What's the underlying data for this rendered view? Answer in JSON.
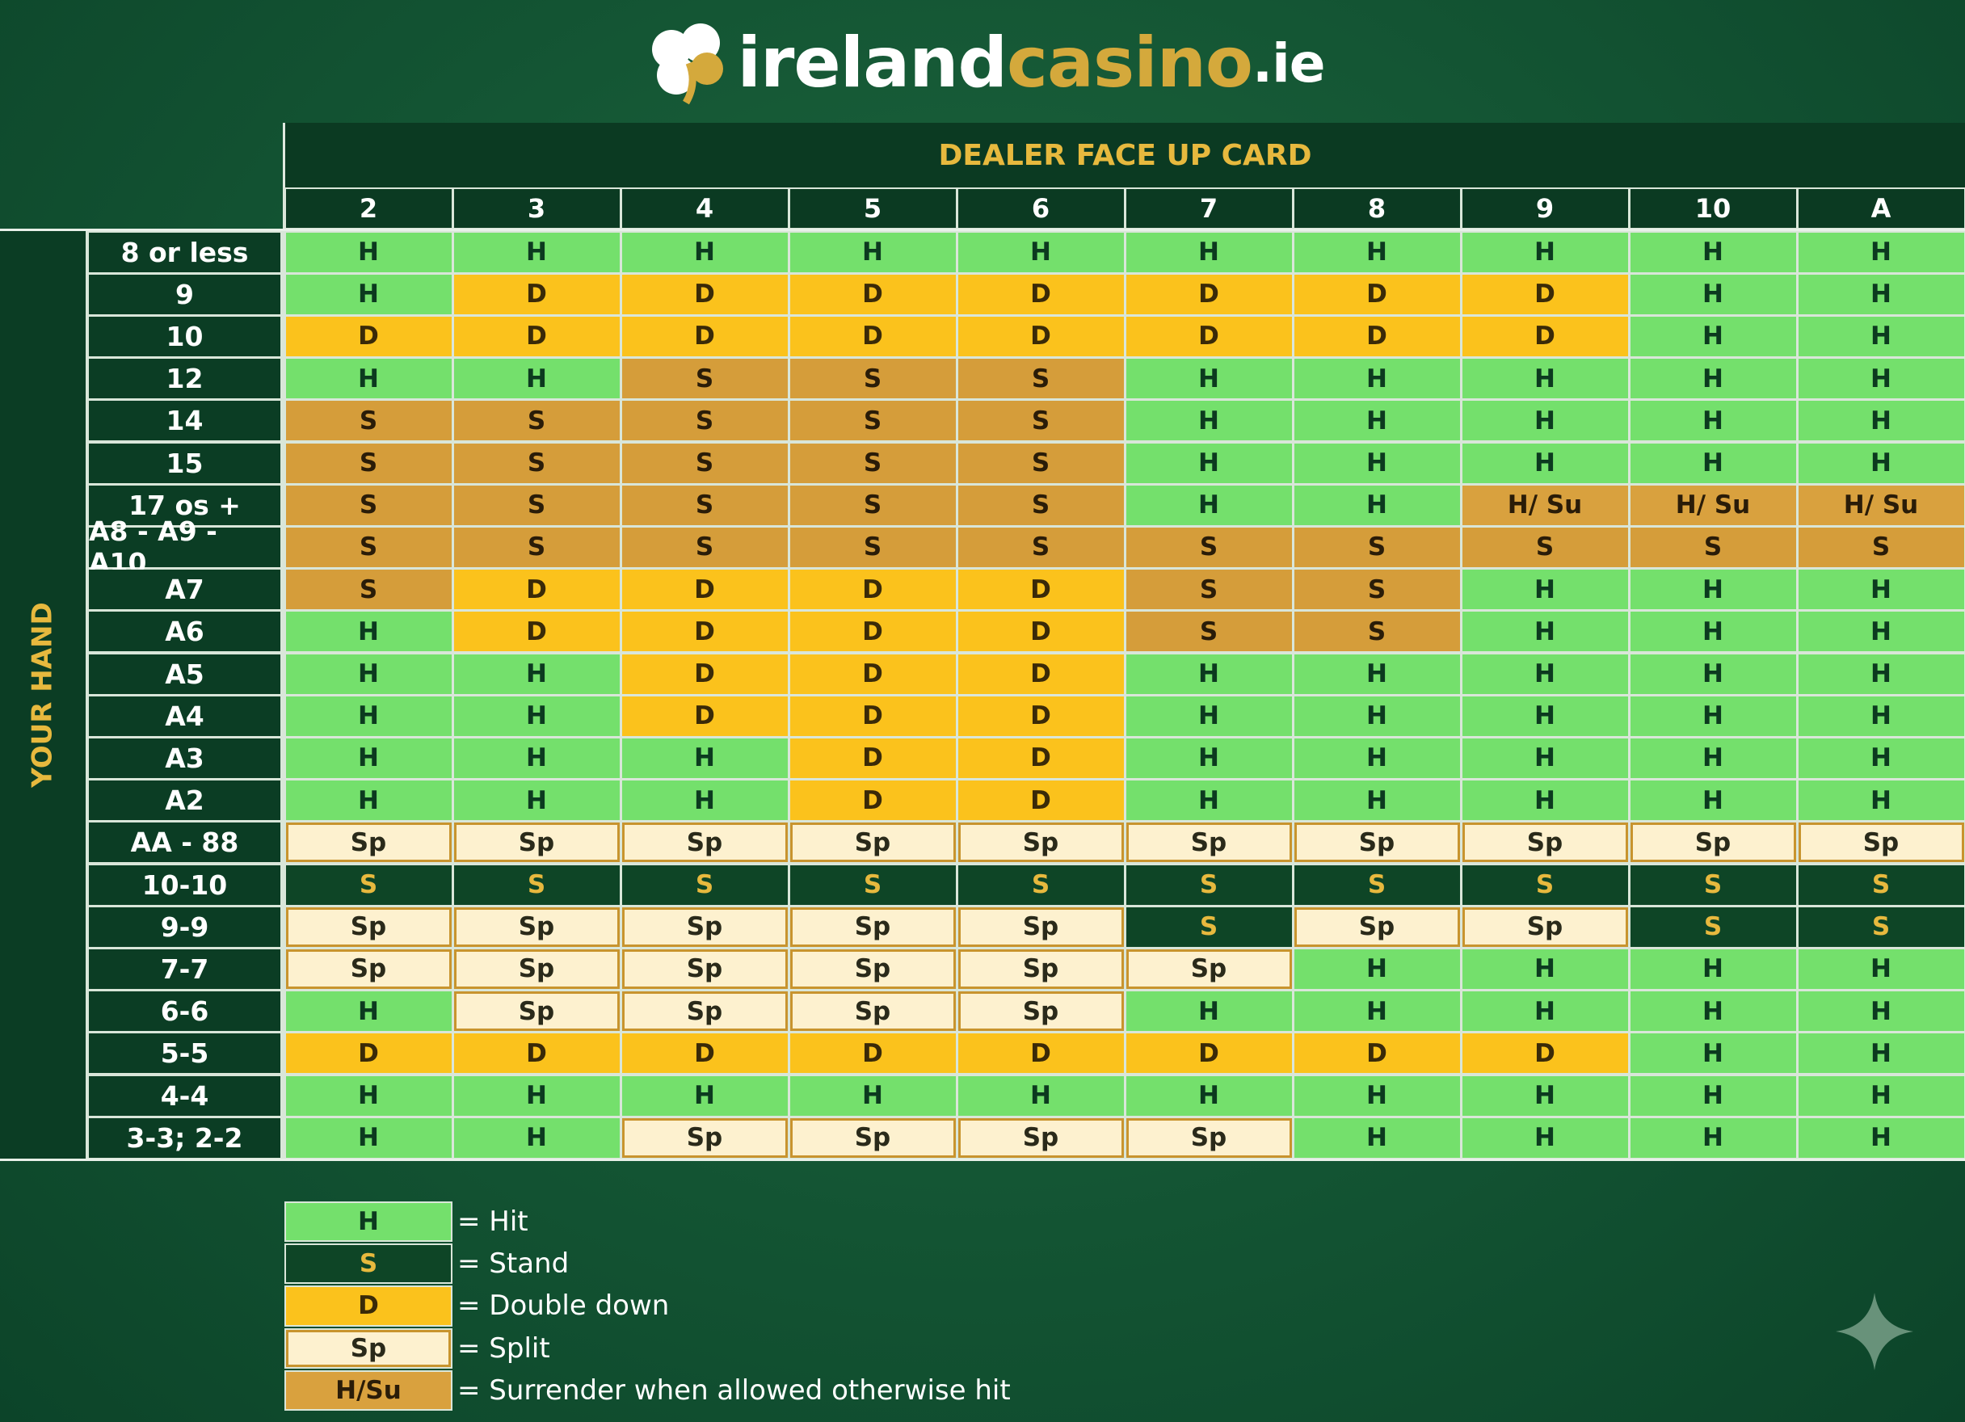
{
  "header": {
    "logo": {
      "part1": "ireland",
      "part2": "casino",
      "part3": ".ie"
    }
  },
  "table": {
    "column_header": "DEALER FACE UP CARD",
    "row_header": "YOUR HAND",
    "columns": [
      "2",
      "3",
      "4",
      "5",
      "6",
      "7",
      "8",
      "9",
      "10",
      "A"
    ],
    "rows": [
      {
        "label": "8 or less",
        "cells": [
          "H",
          "H",
          "H",
          "H",
          "H",
          "H",
          "H",
          "H",
          "H",
          "H"
        ]
      },
      {
        "label": "9",
        "cells": [
          "H",
          "D",
          "D",
          "D",
          "D",
          "D",
          "D",
          "D",
          "H",
          "H"
        ]
      },
      {
        "label": "10",
        "cells": [
          "D",
          "D",
          "D",
          "D",
          "D",
          "D",
          "D",
          "D",
          "H",
          "H"
        ]
      },
      {
        "label": "12",
        "cells": [
          "H",
          "H",
          "S",
          "S",
          "S",
          "H",
          "H",
          "H",
          "H",
          "H"
        ]
      },
      {
        "label": "14",
        "cells": [
          "S",
          "S",
          "S",
          "S",
          "S",
          "H",
          "H",
          "H",
          "H",
          "H"
        ]
      },
      {
        "label": "15",
        "cells": [
          "S",
          "S",
          "S",
          "S",
          "S",
          "H",
          "H",
          "H",
          "H",
          "H"
        ]
      },
      {
        "label": "17 os +",
        "cells": [
          "S",
          "S",
          "S",
          "S",
          "S",
          "H",
          "H",
          "H/ Su",
          "H/ Su",
          "H/ Su"
        ]
      },
      {
        "label": "A8 - A9 - A10",
        "cells": [
          "S",
          "S",
          "S",
          "S",
          "S",
          "S",
          "S",
          "S",
          "S",
          "S"
        ]
      },
      {
        "label": "A7",
        "cells": [
          "S",
          "D",
          "D",
          "D",
          "D",
          "S",
          "S",
          "H",
          "H",
          "H"
        ]
      },
      {
        "label": "A6",
        "cells": [
          "H",
          "D",
          "D",
          "D",
          "D",
          "S",
          "S",
          "H",
          "H",
          "H"
        ]
      },
      {
        "label": "A5",
        "cells": [
          "H",
          "H",
          "D",
          "D",
          "D",
          "H",
          "H",
          "H",
          "H",
          "H"
        ]
      },
      {
        "label": "A4",
        "cells": [
          "H",
          "H",
          "D",
          "D",
          "D",
          "H",
          "H",
          "H",
          "H",
          "H"
        ]
      },
      {
        "label": "A3",
        "cells": [
          "H",
          "H",
          "H",
          "D",
          "D",
          "H",
          "H",
          "H",
          "H",
          "H"
        ]
      },
      {
        "label": "A2",
        "cells": [
          "H",
          "H",
          "H",
          "D",
          "D",
          "H",
          "H",
          "H",
          "H",
          "H"
        ]
      },
      {
        "label": "AA - 88",
        "cells": [
          "Sp",
          "Sp",
          "Sp",
          "Sp",
          "Sp",
          "Sp",
          "Sp",
          "Sp",
          "Sp",
          "Sp"
        ]
      },
      {
        "label": "10-10",
        "cells": [
          "S",
          "S",
          "S",
          "S",
          "S",
          "S",
          "S",
          "S",
          "S",
          "S"
        ]
      },
      {
        "label": "9-9",
        "cells": [
          "Sp",
          "Sp",
          "Sp",
          "Sp",
          "Sp",
          "S",
          "Sp",
          "Sp",
          "S",
          "S"
        ]
      },
      {
        "label": "7-7",
        "cells": [
          "Sp",
          "Sp",
          "Sp",
          "Sp",
          "Sp",
          "Sp",
          "H",
          "H",
          "H",
          "H"
        ]
      },
      {
        "label": "6-6",
        "cells": [
          "H",
          "Sp",
          "Sp",
          "Sp",
          "Sp",
          "H",
          "H",
          "H",
          "H",
          "H"
        ]
      },
      {
        "label": "5-5",
        "cells": [
          "D",
          "D",
          "D",
          "D",
          "D",
          "D",
          "D",
          "D",
          "H",
          "H"
        ]
      },
      {
        "label": "4-4",
        "cells": [
          "H",
          "H",
          "H",
          "H",
          "H",
          "H",
          "H",
          "H",
          "H",
          "H"
        ]
      },
      {
        "label": "3-3; 2-2",
        "cells": [
          "H",
          "H",
          "Sp",
          "Sp",
          "Sp",
          "Sp",
          "H",
          "H",
          "H",
          "H"
        ]
      }
    ]
  },
  "legend": [
    {
      "symbol": "H",
      "text": "= Hit"
    },
    {
      "symbol": "S",
      "text": "= Stand"
    },
    {
      "symbol": "D",
      "text": "= Double down"
    },
    {
      "symbol": "Sp",
      "text": "= Split"
    },
    {
      "symbol": "H/Su",
      "text": "= Surrender when allowed otherwise hit"
    }
  ]
}
